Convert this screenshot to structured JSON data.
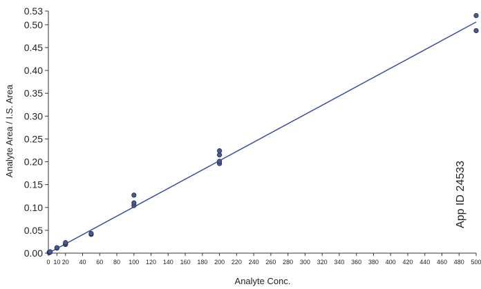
{
  "chart_data": {
    "type": "scatter",
    "title": "",
    "xlabel": "Analyte Conc.",
    "ylabel": "Analyte Area / I.S. Area",
    "xlim": [
      0,
      500
    ],
    "ylim": [
      0,
      0.53
    ],
    "x_ticks": [
      0,
      10,
      20,
      40,
      60,
      80,
      100,
      120,
      140,
      160,
      180,
      200,
      220,
      240,
      260,
      280,
      300,
      320,
      340,
      360,
      380,
      400,
      420,
      440,
      460,
      480,
      500
    ],
    "y_ticks": [
      0.0,
      0.05,
      0.1,
      0.15,
      0.2,
      0.25,
      0.3,
      0.35,
      0.4,
      0.45,
      0.5,
      0.53
    ],
    "y_tick_labels": [
      "0.00",
      "0.05",
      "0.10",
      "0.15",
      "0.20",
      "0.25",
      "0.30",
      "0.35",
      "0.40",
      "0.45",
      "0.50",
      "0.53"
    ],
    "grid": false,
    "legend": "none",
    "points": [
      {
        "x": 1,
        "y": 0.001
      },
      {
        "x": 1,
        "y": 0.002
      },
      {
        "x": 2,
        "y": 0.002
      },
      {
        "x": 2,
        "y": 0.003
      },
      {
        "x": 10,
        "y": 0.011
      },
      {
        "x": 10,
        "y": 0.012
      },
      {
        "x": 20,
        "y": 0.019
      },
      {
        "x": 20,
        "y": 0.02
      },
      {
        "x": 20,
        "y": 0.023
      },
      {
        "x": 50,
        "y": 0.041
      },
      {
        "x": 50,
        "y": 0.043
      },
      {
        "x": 100,
        "y": 0.104
      },
      {
        "x": 100,
        "y": 0.11
      },
      {
        "x": 100,
        "y": 0.127
      },
      {
        "x": 200,
        "y": 0.196
      },
      {
        "x": 200,
        "y": 0.201
      },
      {
        "x": 200,
        "y": 0.215
      },
      {
        "x": 200,
        "y": 0.224
      },
      {
        "x": 500,
        "y": 0.487
      },
      {
        "x": 500,
        "y": 0.52
      }
    ],
    "fit_line": {
      "x": [
        0,
        500
      ],
      "y": [
        0.0,
        0.506
      ]
    },
    "colors": {
      "point": "#4a5a8c",
      "point_stroke": "#1f2a55",
      "line": "#3b4fa0",
      "axis": "#333333"
    }
  },
  "watermark": "App ID 24533"
}
